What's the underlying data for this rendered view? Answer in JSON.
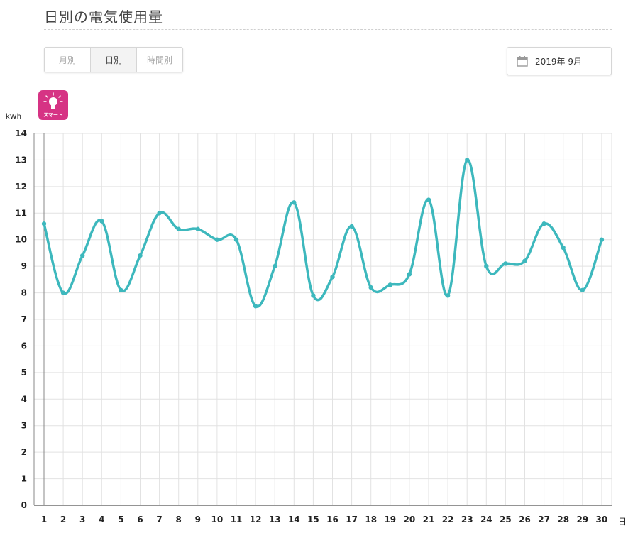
{
  "page": {
    "title": "日別の電気使用量"
  },
  "tabs": [
    {
      "label": "月別",
      "active": false
    },
    {
      "label": "日別",
      "active": true
    },
    {
      "label": "時間別",
      "active": false
    }
  ],
  "date_picker": {
    "value": "2019年  9月",
    "icon": "calendar-icon"
  },
  "badge": {
    "label": "スマート",
    "icon": "lightbulb-icon",
    "color": "#d63384"
  },
  "chart_data": {
    "type": "line",
    "ylabel": "kWh",
    "xlabel": "日",
    "ylim": [
      0,
      14
    ],
    "yticks": [
      0,
      1,
      2,
      3,
      4,
      5,
      6,
      7,
      8,
      9,
      10,
      11,
      12,
      13,
      14
    ],
    "categories": [
      "1",
      "2",
      "3",
      "4",
      "5",
      "6",
      "7",
      "8",
      "9",
      "10",
      "11",
      "12",
      "13",
      "14",
      "15",
      "16",
      "17",
      "18",
      "19",
      "20",
      "21",
      "22",
      "23",
      "24",
      "25",
      "26",
      "27",
      "28",
      "29",
      "30"
    ],
    "series": [
      {
        "color": "#3db8bd",
        "values": [
          10.6,
          8.0,
          9.4,
          10.7,
          8.1,
          9.4,
          11.0,
          10.4,
          10.4,
          10.0,
          10.0,
          7.5,
          9.0,
          11.4,
          7.9,
          8.6,
          10.5,
          8.2,
          8.3,
          8.7,
          11.5,
          7.9,
          13.0,
          9.0,
          9.1,
          9.2,
          10.6,
          9.7,
          8.1,
          10.0
        ]
      }
    ],
    "grid": true
  }
}
